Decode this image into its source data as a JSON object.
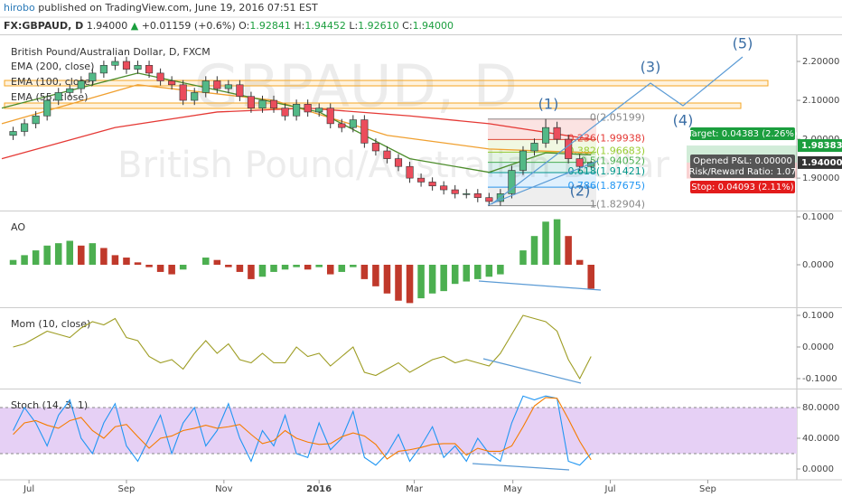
{
  "header": {
    "author": "hirobo",
    "published": "published on TradingView.com, June 19, 2016 07:51 EST"
  },
  "symbol_bar": {
    "symbol": "FX:GBPAUD, D",
    "price": "1.94000",
    "arrow": "▲",
    "change": "+0.01159 (+0.6%)",
    "o_label": "O:",
    "o": "1.92841",
    "h_label": "H:",
    "h": "1.94452",
    "l_label": "L:",
    "l": "1.92610",
    "c_label": "C:",
    "c": "1.94000"
  },
  "chart_data": [
    {
      "type": "candlestick",
      "title": "British Pound/Australian Dollar, D, FXCM",
      "watermark": "GBPAUD, D",
      "watermark_subtitle": "British Pound/Australian Dollar",
      "x": [
        1,
        2,
        3,
        4,
        5,
        6,
        7,
        8,
        9,
        10,
        11,
        12,
        13,
        14,
        15,
        16,
        17,
        18,
        19,
        20,
        21,
        22,
        23,
        24,
        25,
        26,
        27,
        28,
        29,
        30,
        31,
        32,
        33,
        34,
        35,
        36,
        37,
        38,
        39,
        40,
        41,
        42,
        43,
        44,
        45,
        46,
        47,
        48,
        49,
        50,
        51,
        52
      ],
      "open": [
        2.01,
        2.02,
        2.04,
        2.06,
        2.1,
        2.12,
        2.13,
        2.15,
        2.17,
        2.19,
        2.2,
        2.18,
        2.19,
        2.17,
        2.15,
        2.14,
        2.1,
        2.12,
        2.15,
        2.13,
        2.14,
        2.11,
        2.08,
        2.1,
        2.08,
        2.06,
        2.09,
        2.07,
        2.08,
        2.04,
        2.03,
        2.05,
        1.99,
        1.97,
        1.95,
        1.93,
        1.9,
        1.89,
        1.88,
        1.87,
        1.86,
        1.86,
        1.85,
        1.84,
        1.86,
        1.92,
        1.97,
        1.99,
        2.03,
        2.0,
        1.95,
        1.93
      ],
      "high": [
        2.032,
        2.052,
        2.072,
        2.112,
        2.132,
        2.142,
        2.162,
        2.182,
        2.202,
        2.212,
        2.212,
        2.202,
        2.202,
        2.182,
        2.162,
        2.152,
        2.132,
        2.162,
        2.162,
        2.152,
        2.152,
        2.122,
        2.112,
        2.112,
        2.092,
        2.102,
        2.102,
        2.092,
        2.092,
        2.052,
        2.062,
        2.062,
        2.002,
        1.982,
        1.962,
        1.942,
        1.912,
        1.902,
        1.892,
        1.882,
        1.872,
        1.872,
        1.862,
        1.872,
        1.932,
        1.982,
        2.002,
        2.052,
        2.045,
        2.012,
        1.962,
        1.945
      ],
      "low": [
        1.998,
        2.008,
        2.028,
        2.048,
        2.088,
        2.108,
        2.118,
        2.138,
        2.158,
        2.178,
        2.168,
        2.168,
        2.158,
        2.138,
        2.128,
        2.088,
        2.088,
        2.108,
        2.118,
        2.118,
        2.098,
        2.068,
        2.068,
        2.068,
        2.048,
        2.048,
        2.058,
        2.058,
        2.028,
        2.018,
        2.018,
        1.978,
        1.958,
        1.938,
        1.918,
        1.888,
        1.878,
        1.868,
        1.858,
        1.848,
        1.848,
        1.838,
        1.829,
        1.829,
        1.848,
        1.908,
        1.958,
        1.978,
        1.988,
        1.938,
        1.918,
        1.926
      ],
      "close": [
        2.02,
        2.04,
        2.06,
        2.1,
        2.12,
        2.13,
        2.15,
        2.17,
        2.19,
        2.2,
        2.18,
        2.19,
        2.17,
        2.15,
        2.14,
        2.1,
        2.12,
        2.15,
        2.13,
        2.14,
        2.11,
        2.08,
        2.1,
        2.08,
        2.06,
        2.09,
        2.07,
        2.08,
        2.04,
        2.03,
        2.05,
        1.99,
        1.97,
        1.95,
        1.93,
        1.9,
        1.89,
        1.88,
        1.87,
        1.86,
        1.86,
        1.85,
        1.84,
        1.86,
        1.92,
        1.97,
        1.99,
        2.03,
        2.0,
        1.95,
        1.93,
        1.94
      ],
      "up_color": "#53b987",
      "down_color": "#eb4d5c",
      "xlim": [
        0,
        70
      ],
      "xticks": [
        {
          "value": 2.4,
          "label": "Jul"
        },
        {
          "value": 11,
          "label": "Sep"
        },
        {
          "value": 19.6,
          "label": "Nov"
        },
        {
          "value": 28,
          "label": "2016"
        },
        {
          "value": 36.4,
          "label": "Mar"
        },
        {
          "value": 45.1,
          "label": "May"
        },
        {
          "value": 53.7,
          "label": "Jul"
        },
        {
          "value": 62.3,
          "label": "Sep"
        }
      ],
      "ylim": [
        1.819,
        2.265
      ],
      "yticks": [
        {
          "value": 1.9,
          "label": "1.90000"
        },
        {
          "value": 2.0,
          "label": "2.00000"
        },
        {
          "value": 2.1,
          "label": "2.10000"
        },
        {
          "value": 2.2,
          "label": "2.20000"
        }
      ],
      "series": [
        {
          "name": "EMA (200, close)",
          "color": "#e53935",
          "x": [
            0,
            10,
            19,
            27,
            36,
            43,
            52
          ],
          "values": [
            1.95,
            2.03,
            2.07,
            2.08,
            2.06,
            2.04,
            2.0
          ]
        },
        {
          "name": "EMA (100, close)",
          "color": "#f0a030",
          "x": [
            0,
            12,
            24,
            34,
            43,
            52
          ],
          "values": [
            2.04,
            2.14,
            2.1,
            2.01,
            1.975,
            1.965
          ]
        },
        {
          "name": "EMA (55, close)",
          "color": "#4c8c2b",
          "x": [
            0,
            12,
            20,
            28,
            36,
            43,
            48,
            52
          ],
          "values": [
            2.08,
            2.17,
            2.12,
            2.07,
            1.95,
            1.915,
            1.965,
            1.96
          ]
        }
      ],
      "fib": {
        "levels": [
          {
            "label": "0(2.05199)",
            "value": 2.05199,
            "color": "#888888"
          },
          {
            "label": "0.236(1.99938)",
            "value": 1.99938,
            "color": "#e53935"
          },
          {
            "label": "0.382(1.96683)",
            "value": 1.96683,
            "color": "#9acd32"
          },
          {
            "label": "0.5(1.94052)",
            "value": 1.94052,
            "color": "#4caf50"
          },
          {
            "label": "0.618(1.91421)",
            "value": 1.91421,
            "color": "#009688"
          },
          {
            "label": "0.786(1.87675)",
            "value": 1.87675,
            "color": "#2196f3"
          },
          {
            "label": "1(1.82904)",
            "value": 1.82904,
            "color": "#888888"
          }
        ]
      },
      "waves": [
        "(1)",
        "(2)",
        "(3)",
        "(4)",
        "(5)"
      ],
      "position": {
        "target_label": "Target: 0.04383 (2.26%)",
        "pnl_label": "Opened P&L: 0.00000",
        "rr_label": "Risk/Reward Ratio: 1.07",
        "stop_label": "Stop: 0.04093 (2.11%)",
        "entry": {
          "value": 1.94,
          "label": "1.94000"
        },
        "target": {
          "value": 1.98383,
          "label": "1.98383"
        },
        "stop": 1.89907,
        "target_color": "#1b9e3e",
        "stop_color": "#e31c1c"
      }
    },
    {
      "type": "bar",
      "title": "AO",
      "values": [
        0.01,
        0.02,
        0.03,
        0.04,
        0.045,
        0.05,
        0.04,
        0.045,
        0.035,
        0.02,
        0.015,
        0.005,
        -0.005,
        -0.015,
        -0.02,
        -0.01,
        0.0,
        0.015,
        0.01,
        -0.005,
        -0.015,
        -0.03,
        -0.025,
        -0.015,
        -0.01,
        -0.005,
        -0.01,
        -0.005,
        -0.02,
        -0.015,
        -0.005,
        -0.03,
        -0.045,
        -0.06,
        -0.075,
        -0.08,
        -0.07,
        -0.06,
        -0.055,
        -0.04,
        -0.035,
        -0.03,
        -0.025,
        -0.02,
        0.0,
        0.03,
        0.06,
        0.09,
        0.095,
        0.06,
        0.01,
        -0.05
      ],
      "up_color": "#4caf50",
      "down_color": "#c0392b",
      "ylim": [
        -0.0887,
        0.1094
      ],
      "yticks": [
        {
          "value": 0,
          "label": "0.0000"
        },
        {
          "value": 0.1,
          "label": "0.1000"
        }
      ]
    },
    {
      "type": "line",
      "title": "Mom (10, close)",
      "series": [
        {
          "color": "#9e9d24",
          "values": [
            0.0,
            0.01,
            0.03,
            0.05,
            0.04,
            0.03,
            0.06,
            0.08,
            0.07,
            0.09,
            0.03,
            0.02,
            -0.03,
            -0.05,
            -0.04,
            -0.07,
            -0.02,
            0.02,
            -0.02,
            0.01,
            -0.04,
            -0.05,
            -0.02,
            -0.05,
            -0.05,
            0.0,
            -0.03,
            -0.02,
            -0.06,
            -0.03,
            0.0,
            -0.08,
            -0.09,
            -0.07,
            -0.05,
            -0.08,
            -0.06,
            -0.04,
            -0.03,
            -0.05,
            -0.04,
            -0.05,
            -0.06,
            -0.02,
            0.04,
            0.1,
            0.09,
            0.08,
            0.05,
            -0.04,
            -0.1,
            -0.03
          ]
        }
      ],
      "ylim": [
        -0.1314,
        0.12
      ],
      "yticks": [
        {
          "value": -0.1,
          "label": "-0.1000"
        },
        {
          "value": 0,
          "label": "0.0000"
        },
        {
          "value": 0.1,
          "label": "0.1000"
        }
      ]
    },
    {
      "type": "line",
      "title": "Stoch (14, 3, 1)",
      "series": [
        {
          "color": "#2196f3",
          "values": [
            50,
            80,
            60,
            30,
            70,
            90,
            40,
            20,
            60,
            85,
            30,
            10,
            40,
            70,
            20,
            60,
            80,
            30,
            50,
            85,
            40,
            10,
            50,
            30,
            70,
            20,
            15,
            60,
            25,
            40,
            75,
            15,
            5,
            20,
            45,
            10,
            30,
            55,
            15,
            30,
            10,
            40,
            20,
            10,
            60,
            95,
            90,
            95,
            92,
            10,
            5,
            20
          ]
        },
        {
          "color": "#f57c00",
          "values": [
            45,
            60,
            63,
            57,
            53,
            63,
            67,
            50,
            40,
            55,
            58,
            42,
            27,
            40,
            43,
            50,
            53,
            57,
            53,
            55,
            58,
            45,
            33,
            37,
            50,
            40,
            35,
            32,
            33,
            42,
            47,
            43,
            32,
            13,
            23,
            25,
            28,
            32,
            33,
            33,
            18,
            27,
            23,
            23,
            30,
            55,
            82,
            93,
            92,
            65,
            36,
            12
          ]
        }
      ],
      "band": [
        20,
        80
      ],
      "band_color": "#e6d0f5",
      "ylim": [
        -12.94,
        102.35
      ],
      "yticks": [
        {
          "value": 0,
          "label": "0.0000"
        },
        {
          "value": 40,
          "label": "40.0000"
        },
        {
          "value": 80,
          "label": "80.0000"
        }
      ]
    }
  ]
}
